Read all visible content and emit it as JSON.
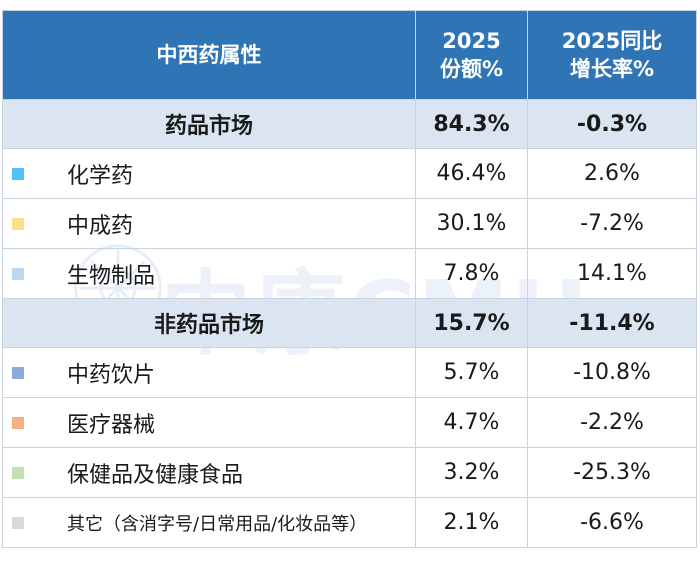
{
  "header": {
    "col1": "中西药属性",
    "col2_line1": "2025",
    "col2_line2": "份额%",
    "col3_line1": "2025同比",
    "col3_line2": "增长率%"
  },
  "watermark": "中康CMH",
  "colors": {
    "header_bg": "#2f75b5",
    "section_bg": "#dbe4f1",
    "negative_text": "#c00000"
  },
  "sections": [
    {
      "label": "药品市场",
      "share": "84.3%",
      "growth": "-0.3%",
      "items": [
        {
          "label": "化学药",
          "share": "46.4%",
          "growth": "2.6%",
          "color": "#4fc3f7"
        },
        {
          "label": "中成药",
          "share": "30.1%",
          "growth": "-7.2%",
          "color": "#ffe08a"
        },
        {
          "label": "生物制品",
          "share": "7.8%",
          "growth": "14.1%",
          "color": "#bdd7ee"
        }
      ]
    },
    {
      "label": "非药品市场",
      "share": "15.7%",
      "growth": "-11.4%",
      "items": [
        {
          "label": "中药饮片",
          "share": "5.7%",
          "growth": "-10.8%",
          "color": "#8eaadb"
        },
        {
          "label": "医疗器械",
          "share": "4.7%",
          "growth": "-2.2%",
          "color": "#f4b183"
        },
        {
          "label": "保健品及健康食品",
          "share": "3.2%",
          "growth": "-25.3%",
          "color": "#c5e0b4"
        },
        {
          "label": "其它（含消字号/日常用品/化妆品等）",
          "share": "2.1%",
          "growth": "-6.6%",
          "color": "#d9d9d9"
        }
      ]
    }
  ]
}
